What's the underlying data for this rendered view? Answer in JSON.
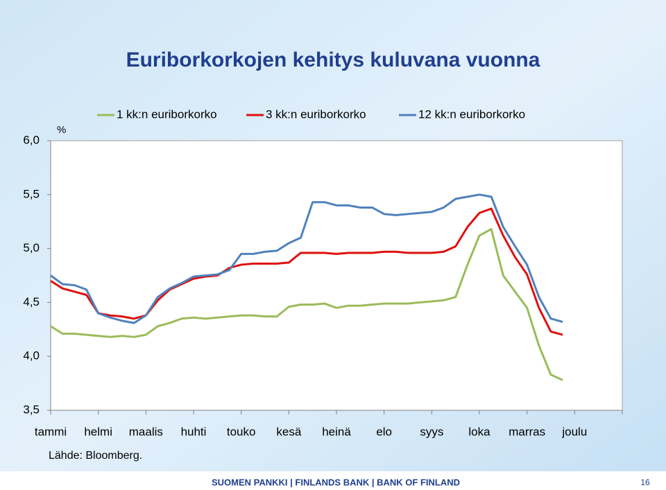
{
  "chart_data": {
    "type": "line",
    "title": "Euriborkorkojen kehitys kuluvana vuonna",
    "y_label": "%",
    "source": "Lähde: Bloomberg.",
    "footer": "SUOMEN PANKKI | FINLANDS BANK | BANK OF FINLAND",
    "page": "16",
    "categories": [
      "tammi",
      null,
      null,
      null,
      "helmi",
      null,
      null,
      null,
      "maalis",
      null,
      null,
      null,
      "huhti",
      null,
      null,
      null,
      "touko",
      null,
      null,
      null,
      "kesä",
      null,
      null,
      null,
      "heinä",
      null,
      null,
      null,
      "elo",
      null,
      null,
      null,
      "syys",
      null,
      null,
      null,
      "loka",
      null,
      null,
      null,
      "marras",
      null,
      null,
      null,
      "joulu",
      null,
      null,
      null
    ],
    "ylim": [
      3.5,
      6.0
    ],
    "yticks": [
      {
        "value": 3.5,
        "label": "3,5"
      },
      {
        "value": 4.0,
        "label": "4,0"
      },
      {
        "value": 4.5,
        "label": "4,5"
      },
      {
        "value": 5.0,
        "label": "5,0"
      },
      {
        "value": 5.5,
        "label": "5,5"
      },
      {
        "value": 6.0,
        "label": "6,0"
      }
    ],
    "series": [
      {
        "name": "1 kk:n euriborkorko",
        "color": "#9bbb59",
        "values": [
          4.28,
          4.21,
          4.21,
          4.2,
          4.19,
          4.18,
          4.19,
          4.18,
          4.2,
          4.28,
          4.31,
          4.35,
          4.36,
          4.35,
          4.36,
          4.37,
          4.38,
          4.38,
          4.37,
          4.37,
          4.46,
          4.48,
          4.48,
          4.49,
          4.45,
          4.47,
          4.47,
          4.48,
          4.49,
          4.49,
          4.49,
          4.5,
          4.51,
          4.52,
          4.55,
          4.85,
          5.12,
          5.18,
          4.75,
          4.6,
          4.45,
          4.1,
          3.83,
          3.78,
          null,
          null,
          null,
          null
        ]
      },
      {
        "name": "3 kk:n euriborkorko",
        "color": "#e0100f",
        "values": [
          4.7,
          4.63,
          4.6,
          4.57,
          4.4,
          4.38,
          4.37,
          4.35,
          4.38,
          4.52,
          4.62,
          4.67,
          4.72,
          4.74,
          4.75,
          4.82,
          4.85,
          4.86,
          4.86,
          4.86,
          4.87,
          4.96,
          4.96,
          4.96,
          4.95,
          4.96,
          4.96,
          4.96,
          4.97,
          4.97,
          4.96,
          4.96,
          4.96,
          4.97,
          5.02,
          5.2,
          5.33,
          5.37,
          5.12,
          4.92,
          4.76,
          4.45,
          4.23,
          4.2,
          null,
          null,
          null,
          null
        ]
      },
      {
        "name": "12 kk:n euriborkorko",
        "color": "#4f81bd",
        "values": [
          4.75,
          4.67,
          4.66,
          4.62,
          4.4,
          4.36,
          4.33,
          4.31,
          4.38,
          4.55,
          4.63,
          4.68,
          4.74,
          4.75,
          4.76,
          4.8,
          4.95,
          4.95,
          4.97,
          4.98,
          5.05,
          5.1,
          5.43,
          5.43,
          5.4,
          5.4,
          5.38,
          5.38,
          5.32,
          5.31,
          5.32,
          5.33,
          5.34,
          5.38,
          5.46,
          5.48,
          5.5,
          5.48,
          5.2,
          5.02,
          4.85,
          4.55,
          4.35,
          4.32,
          null,
          null,
          null,
          null
        ]
      }
    ]
  }
}
